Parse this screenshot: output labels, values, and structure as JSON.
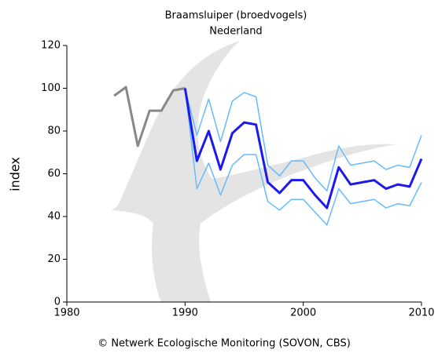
{
  "chart_data": {
    "type": "line",
    "title": "Braamsluiper (broedvogels)",
    "subtitle": "Nederland",
    "y_label": "index",
    "footer": "© Netwerk Ecologische Monitoring (SOVON, CBS)",
    "xlim": [
      1980,
      2010
    ],
    "xticks": [
      1980,
      1990,
      2000,
      2010
    ],
    "ylim": [
      0,
      120
    ],
    "yticks": [
      0,
      20,
      40,
      60,
      80,
      100,
      120
    ],
    "grid": false,
    "series": [
      {
        "color": "#888888",
        "width": 3,
        "x": [
          1984,
          1985,
          1986,
          1987,
          1988,
          1989,
          1990
        ],
        "values": [
          96.5,
          100.5,
          73,
          89.5,
          89.5,
          99,
          100
        ]
      },
      {
        "color": "#66bbff",
        "width": 1.5,
        "x": [
          1990,
          1991,
          1992,
          1993,
          1994,
          1995,
          1996,
          1997,
          1998,
          1999,
          2000,
          2001,
          2002,
          2003,
          2004,
          2005,
          2006,
          2007,
          2008,
          2009,
          2010
        ],
        "values": [
          100,
          78,
          95,
          75,
          94,
          98,
          96,
          64,
          59,
          66,
          66,
          58,
          52,
          73,
          64,
          65,
          66,
          62,
          64,
          63,
          78
        ]
      },
      {
        "color": "#66bbff",
        "width": 1.5,
        "x": [
          1990,
          1991,
          1992,
          1993,
          1994,
          1995,
          1996,
          1997,
          1998,
          1999,
          2000,
          2001,
          2002,
          2003,
          2004,
          2005,
          2006,
          2007,
          2008,
          2009,
          2010
        ],
        "values": [
          100,
          53,
          65,
          50,
          64,
          69,
          69,
          47,
          43,
          48,
          48,
          42,
          36,
          53,
          46,
          47,
          48,
          44,
          46,
          45,
          56
        ]
      },
      {
        "color": "#1a1aee",
        "width": 3,
        "x": [
          1990,
          1991,
          1992,
          1993,
          1994,
          1995,
          1996,
          1997,
          1998,
          1999,
          2000,
          2001,
          2002,
          2003,
          2004,
          2005,
          2006,
          2007,
          2008,
          2009,
          2010
        ],
        "values": [
          100,
          66,
          80,
          62,
          79,
          84,
          83,
          56,
          51,
          57,
          57,
          50,
          44,
          63,
          55,
          56,
          57,
          53,
          55,
          54,
          67
        ]
      }
    ]
  }
}
